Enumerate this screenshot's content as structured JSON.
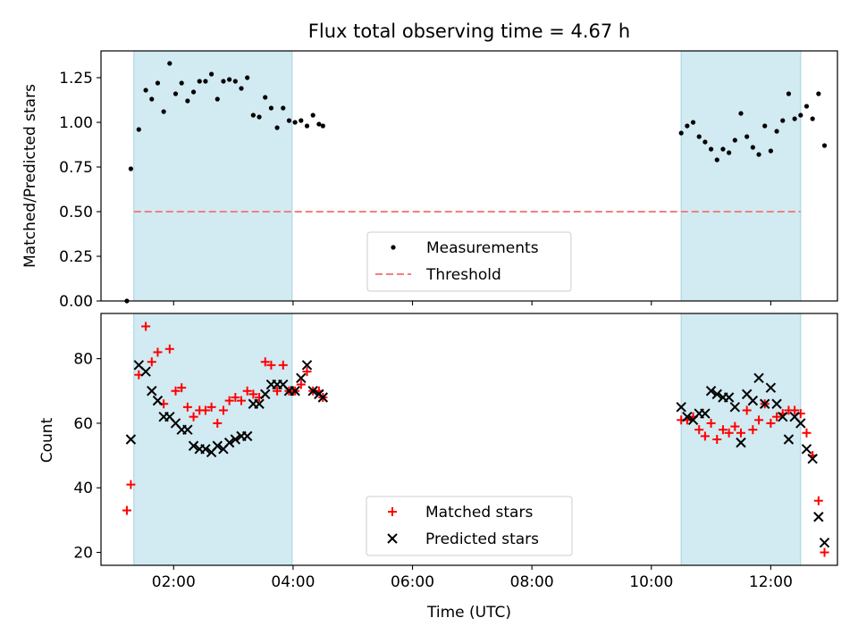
{
  "figure_title": "Flux total observing time = 4.67 h",
  "chart_data": [
    {
      "type": "scatter",
      "panel": "top",
      "xlabel": "",
      "ylabel": "Matched/Predicted stars",
      "xlim": [
        "00:47",
        "13:07"
      ],
      "ylim": [
        0,
        1.4
      ],
      "yticks": [
        0.0,
        0.25,
        0.5,
        0.75,
        1.0,
        1.25
      ],
      "ytick_labels": [
        "0.00",
        "0.25",
        "0.50",
        "0.75",
        "1.00",
        "1.25"
      ],
      "observing_windows": [
        [
          "01:20",
          "03:59"
        ],
        [
          "10:30",
          "12:30"
        ]
      ],
      "window_color": "#add8e6",
      "legend": {
        "placement": "lower center",
        "entries": [
          "Measurements",
          "Threshold"
        ]
      },
      "series": [
        {
          "name": "Measurements",
          "marker": "dot",
          "color": "#000000",
          "points": [
            [
              "01:13",
              0.0
            ],
            [
              "01:17",
              0.74
            ],
            [
              "01:25",
              0.96
            ],
            [
              "01:32",
              1.18
            ],
            [
              "01:38",
              1.13
            ],
            [
              "01:44",
              1.22
            ],
            [
              "01:50",
              1.06
            ],
            [
              "01:56",
              1.33
            ],
            [
              "02:02",
              1.16
            ],
            [
              "02:08",
              1.22
            ],
            [
              "02:14",
              1.12
            ],
            [
              "02:20",
              1.17
            ],
            [
              "02:26",
              1.23
            ],
            [
              "02:32",
              1.23
            ],
            [
              "02:38",
              1.27
            ],
            [
              "02:44",
              1.13
            ],
            [
              "02:50",
              1.23
            ],
            [
              "02:56",
              1.24
            ],
            [
              "03:02",
              1.23
            ],
            [
              "03:08",
              1.19
            ],
            [
              "03:14",
              1.25
            ],
            [
              "03:20",
              1.04
            ],
            [
              "03:26",
              1.03
            ],
            [
              "03:32",
              1.14
            ],
            [
              "03:38",
              1.08
            ],
            [
              "03:44",
              0.97
            ],
            [
              "03:50",
              1.08
            ],
            [
              "03:56",
              1.01
            ],
            [
              "04:02",
              1.0
            ],
            [
              "04:08",
              1.01
            ],
            [
              "04:14",
              0.98
            ],
            [
              "04:20",
              1.04
            ],
            [
              "04:26",
              0.99
            ],
            [
              "04:30",
              0.98
            ],
            [
              "10:30",
              0.94
            ],
            [
              "10:36",
              0.98
            ],
            [
              "10:42",
              1.0
            ],
            [
              "10:48",
              0.92
            ],
            [
              "10:54",
              0.89
            ],
            [
              "11:00",
              0.85
            ],
            [
              "11:06",
              0.79
            ],
            [
              "11:12",
              0.85
            ],
            [
              "11:18",
              0.83
            ],
            [
              "11:24",
              0.9
            ],
            [
              "11:30",
              1.05
            ],
            [
              "11:36",
              0.92
            ],
            [
              "11:42",
              0.86
            ],
            [
              "11:48",
              0.82
            ],
            [
              "11:54",
              0.98
            ],
            [
              "12:00",
              0.84
            ],
            [
              "12:06",
              0.95
            ],
            [
              "12:12",
              1.01
            ],
            [
              "12:18",
              1.16
            ],
            [
              "12:24",
              1.02
            ],
            [
              "12:30",
              1.04
            ],
            [
              "12:36",
              1.09
            ],
            [
              "12:42",
              1.02
            ],
            [
              "12:48",
              1.16
            ],
            [
              "12:54",
              0.87
            ]
          ]
        },
        {
          "name": "Threshold",
          "style": "dashed",
          "color": "#f08080",
          "points": [
            [
              "01:20",
              0.5
            ],
            [
              "12:30",
              0.5
            ]
          ]
        }
      ]
    },
    {
      "type": "scatter",
      "panel": "bottom",
      "xlabel": "Time (UTC)",
      "ylabel": "Count",
      "xlim": [
        "00:47",
        "13:07"
      ],
      "ylim": [
        16,
        94
      ],
      "xticks": [
        "02:00",
        "04:00",
        "06:00",
        "08:00",
        "10:00",
        "12:00"
      ],
      "yticks": [
        20,
        40,
        60,
        80
      ],
      "ytick_labels": [
        "20",
        "40",
        "60",
        "80"
      ],
      "observing_windows": [
        [
          "01:20",
          "03:59"
        ],
        [
          "10:30",
          "12:30"
        ]
      ],
      "window_color": "#add8e6",
      "legend": {
        "placement": "lower center",
        "entries": [
          "Matched stars",
          "Predicted stars"
        ]
      },
      "series": [
        {
          "name": "Matched stars",
          "marker": "plus",
          "color": "#ff0000",
          "points": [
            [
              "01:13",
              33
            ],
            [
              "01:17",
              41
            ],
            [
              "01:25",
              75
            ],
            [
              "01:32",
              90
            ],
            [
              "01:38",
              79
            ],
            [
              "01:44",
              82
            ],
            [
              "01:50",
              66
            ],
            [
              "01:56",
              83
            ],
            [
              "02:02",
              70
            ],
            [
              "02:08",
              71
            ],
            [
              "02:14",
              65
            ],
            [
              "02:20",
              62
            ],
            [
              "02:26",
              64
            ],
            [
              "02:32",
              64
            ],
            [
              "02:38",
              65
            ],
            [
              "02:44",
              60
            ],
            [
              "02:50",
              64
            ],
            [
              "02:56",
              67
            ],
            [
              "03:02",
              68
            ],
            [
              "03:08",
              67
            ],
            [
              "03:14",
              70
            ],
            [
              "03:20",
              69
            ],
            [
              "03:26",
              68
            ],
            [
              "03:32",
              79
            ],
            [
              "03:38",
              78
            ],
            [
              "03:44",
              70
            ],
            [
              "03:50",
              78
            ],
            [
              "03:56",
              70
            ],
            [
              "04:02",
              70
            ],
            [
              "04:08",
              72
            ],
            [
              "04:14",
              76
            ],
            [
              "04:20",
              70
            ],
            [
              "04:26",
              70
            ],
            [
              "04:30",
              68
            ],
            [
              "10:30",
              61
            ],
            [
              "10:36",
              61
            ],
            [
              "10:42",
              62
            ],
            [
              "10:48",
              58
            ],
            [
              "10:54",
              56
            ],
            [
              "11:00",
              60
            ],
            [
              "11:06",
              55
            ],
            [
              "11:12",
              58
            ],
            [
              "11:18",
              57
            ],
            [
              "11:24",
              59
            ],
            [
              "11:30",
              57
            ],
            [
              "11:36",
              64
            ],
            [
              "11:42",
              58
            ],
            [
              "11:48",
              61
            ],
            [
              "11:54",
              66
            ],
            [
              "12:00",
              60
            ],
            [
              "12:06",
              62
            ],
            [
              "12:12",
              63
            ],
            [
              "12:18",
              64
            ],
            [
              "12:24",
              64
            ],
            [
              "12:30",
              63
            ],
            [
              "12:36",
              57
            ],
            [
              "12:42",
              50
            ],
            [
              "12:48",
              36
            ],
            [
              "12:54",
              20
            ]
          ]
        },
        {
          "name": "Predicted stars",
          "marker": "x",
          "color": "#000000",
          "points": [
            [
              "01:17",
              55
            ],
            [
              "01:25",
              78
            ],
            [
              "01:32",
              76
            ],
            [
              "01:38",
              70
            ],
            [
              "01:44",
              67
            ],
            [
              "01:50",
              62
            ],
            [
              "01:56",
              62
            ],
            [
              "02:02",
              60
            ],
            [
              "02:08",
              58
            ],
            [
              "02:14",
              58
            ],
            [
              "02:20",
              53
            ],
            [
              "02:26",
              52
            ],
            [
              "02:32",
              52
            ],
            [
              "02:38",
              51
            ],
            [
              "02:44",
              53
            ],
            [
              "02:50",
              52
            ],
            [
              "02:56",
              54
            ],
            [
              "03:02",
              55
            ],
            [
              "03:08",
              56
            ],
            [
              "03:14",
              56
            ],
            [
              "03:20",
              66
            ],
            [
              "03:26",
              66
            ],
            [
              "03:32",
              69
            ],
            [
              "03:38",
              72
            ],
            [
              "03:44",
              72
            ],
            [
              "03:50",
              72
            ],
            [
              "03:56",
              70
            ],
            [
              "04:02",
              70
            ],
            [
              "04:08",
              74
            ],
            [
              "04:14",
              78
            ],
            [
              "04:20",
              70
            ],
            [
              "04:26",
              69
            ],
            [
              "04:30",
              68
            ],
            [
              "10:30",
              65
            ],
            [
              "10:36",
              62
            ],
            [
              "10:42",
              61
            ],
            [
              "10:48",
              63
            ],
            [
              "10:54",
              63
            ],
            [
              "11:00",
              70
            ],
            [
              "11:06",
              69
            ],
            [
              "11:12",
              68
            ],
            [
              "11:18",
              68
            ],
            [
              "11:24",
              65
            ],
            [
              "11:30",
              54
            ],
            [
              "11:36",
              69
            ],
            [
              "11:42",
              67
            ],
            [
              "11:48",
              74
            ],
            [
              "11:54",
              66
            ],
            [
              "12:00",
              71
            ],
            [
              "12:06",
              66
            ],
            [
              "12:12",
              62
            ],
            [
              "12:18",
              55
            ],
            [
              "12:24",
              62
            ],
            [
              "12:30",
              60
            ],
            [
              "12:36",
              52
            ],
            [
              "12:42",
              49
            ],
            [
              "12:48",
              31
            ],
            [
              "12:54",
              23
            ]
          ]
        }
      ]
    }
  ]
}
